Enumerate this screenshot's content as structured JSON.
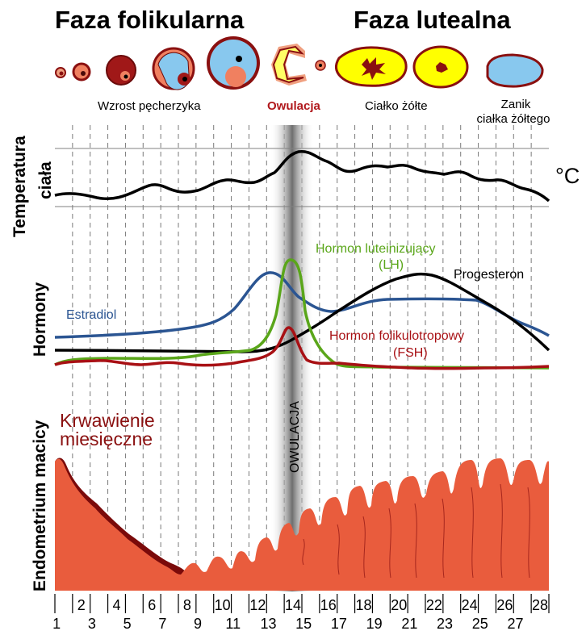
{
  "phases": {
    "follicular": "Faza folikularna",
    "luteal": "Faza lutealna"
  },
  "stages": {
    "growth": "Wzrost pęcherzyka",
    "ovulation": "Owulacja",
    "corpus_luteum": "Ciałko żółte",
    "atrophy_line1": "Zanik",
    "atrophy_line2": "ciałka żółtego"
  },
  "sections": {
    "temperature_line1": "Temperatura",
    "temperature_line2": "ciała",
    "hormones": "Hormony",
    "endometrium": "Endometrium macicy"
  },
  "temperature_unit": "°C",
  "hormones": {
    "estradiol": "Estradiol",
    "lh_line1": "Hormon luteinizujący",
    "lh_line2": "(LH)",
    "progesterone": "Progesteron",
    "fsh_line1": "Hormon folikulotropowy",
    "fsh_line2": "(FSH)"
  },
  "menstruation_line1": "Krwawienie",
  "menstruation_line2": "miesięczne",
  "ovulation_band_label": "OWULACJA",
  "days_even": [
    "2",
    "4",
    "6",
    "8",
    "10",
    "12",
    "14",
    "16",
    "18",
    "20",
    "22",
    "24",
    "26",
    "28"
  ],
  "days_odd": [
    "1",
    "3",
    "5",
    "7",
    "9",
    "11",
    "13",
    "15",
    "17",
    "19",
    "21",
    "23",
    "25",
    "27"
  ],
  "colors": {
    "estradiol": "#2b5592",
    "lh": "#5aa61a",
    "progesterone": "#000000",
    "fsh": "#a81014",
    "endometrium": "#e95c3d",
    "blood": "#7a0a0a",
    "ovulation_label": "#b0181c",
    "corpus_yellow": "#ffff00"
  }
}
